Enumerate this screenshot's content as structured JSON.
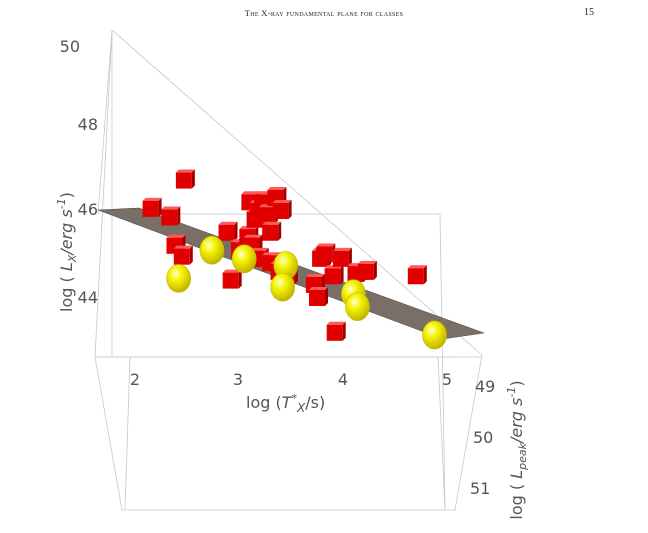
{
  "header": {
    "running_title": "The X-ray fundamental plane for classes",
    "page_number": "15"
  },
  "chart_data": {
    "type": "scatter",
    "projection": "3d",
    "axes": {
      "x": {
        "label": "log (T*X/s)",
        "label_parts": [
          "log (",
          "T",
          "*",
          "X",
          "/s)"
        ],
        "ticks": [
          "2",
          "3",
          "4",
          "5"
        ]
      },
      "y": {
        "label": "log ( LX/erg s-1)",
        "label_parts": [
          "log ( ",
          "L",
          "X",
          "/erg s",
          "-1",
          ")"
        ],
        "ticks": [
          "44",
          "46",
          "48",
          "50"
        ]
      },
      "z": {
        "label": "log ( Lpeak/erg s-1)",
        "label_parts": [
          "log ( ",
          "L",
          "peak",
          "/erg s",
          "-1",
          ")"
        ],
        "ticks": [
          "49",
          "50",
          "51"
        ]
      }
    },
    "box": true,
    "grid": false,
    "legend": "none",
    "fitted_plane": {
      "color": "#7a6f66"
    },
    "series": [
      {
        "marker": "cube",
        "color": "#e00000",
        "points": [
          [
            2.15,
            46.05
          ],
          [
            2.33,
            45.85
          ],
          [
            2.47,
            46.7
          ],
          [
            2.38,
            45.2
          ],
          [
            2.45,
            44.95
          ],
          [
            2.88,
            45.5
          ],
          [
            2.92,
            44.4
          ],
          [
            3.0,
            45.1
          ],
          [
            3.08,
            45.4
          ],
          [
            3.1,
            46.2
          ],
          [
            3.15,
            45.8
          ],
          [
            3.18,
            46.0
          ],
          [
            3.22,
            46.2
          ],
          [
            3.27,
            45.9
          ],
          [
            3.3,
            45.5
          ],
          [
            3.35,
            46.3
          ],
          [
            3.4,
            46.0
          ],
          [
            3.12,
            45.2
          ],
          [
            3.18,
            44.9
          ],
          [
            3.3,
            44.8
          ],
          [
            3.38,
            44.6
          ],
          [
            3.46,
            44.5
          ],
          [
            3.72,
            44.3
          ],
          [
            3.75,
            44.0
          ],
          [
            3.78,
            44.9
          ],
          [
            3.82,
            45.0
          ],
          [
            3.9,
            44.5
          ],
          [
            3.98,
            44.9
          ],
          [
            4.12,
            44.55
          ],
          [
            4.22,
            44.6
          ],
          [
            3.92,
            43.2
          ],
          [
            4.7,
            44.5
          ]
        ]
      },
      {
        "marker": "sphere",
        "color": "#f4f400",
        "points": [
          [
            2.42,
            44.45
          ],
          [
            2.74,
            45.1
          ],
          [
            3.05,
            44.9
          ],
          [
            3.45,
            44.75
          ],
          [
            3.42,
            44.25
          ],
          [
            4.1,
            44.1
          ],
          [
            4.14,
            43.8
          ],
          [
            4.88,
            43.15
          ]
        ]
      }
    ]
  }
}
